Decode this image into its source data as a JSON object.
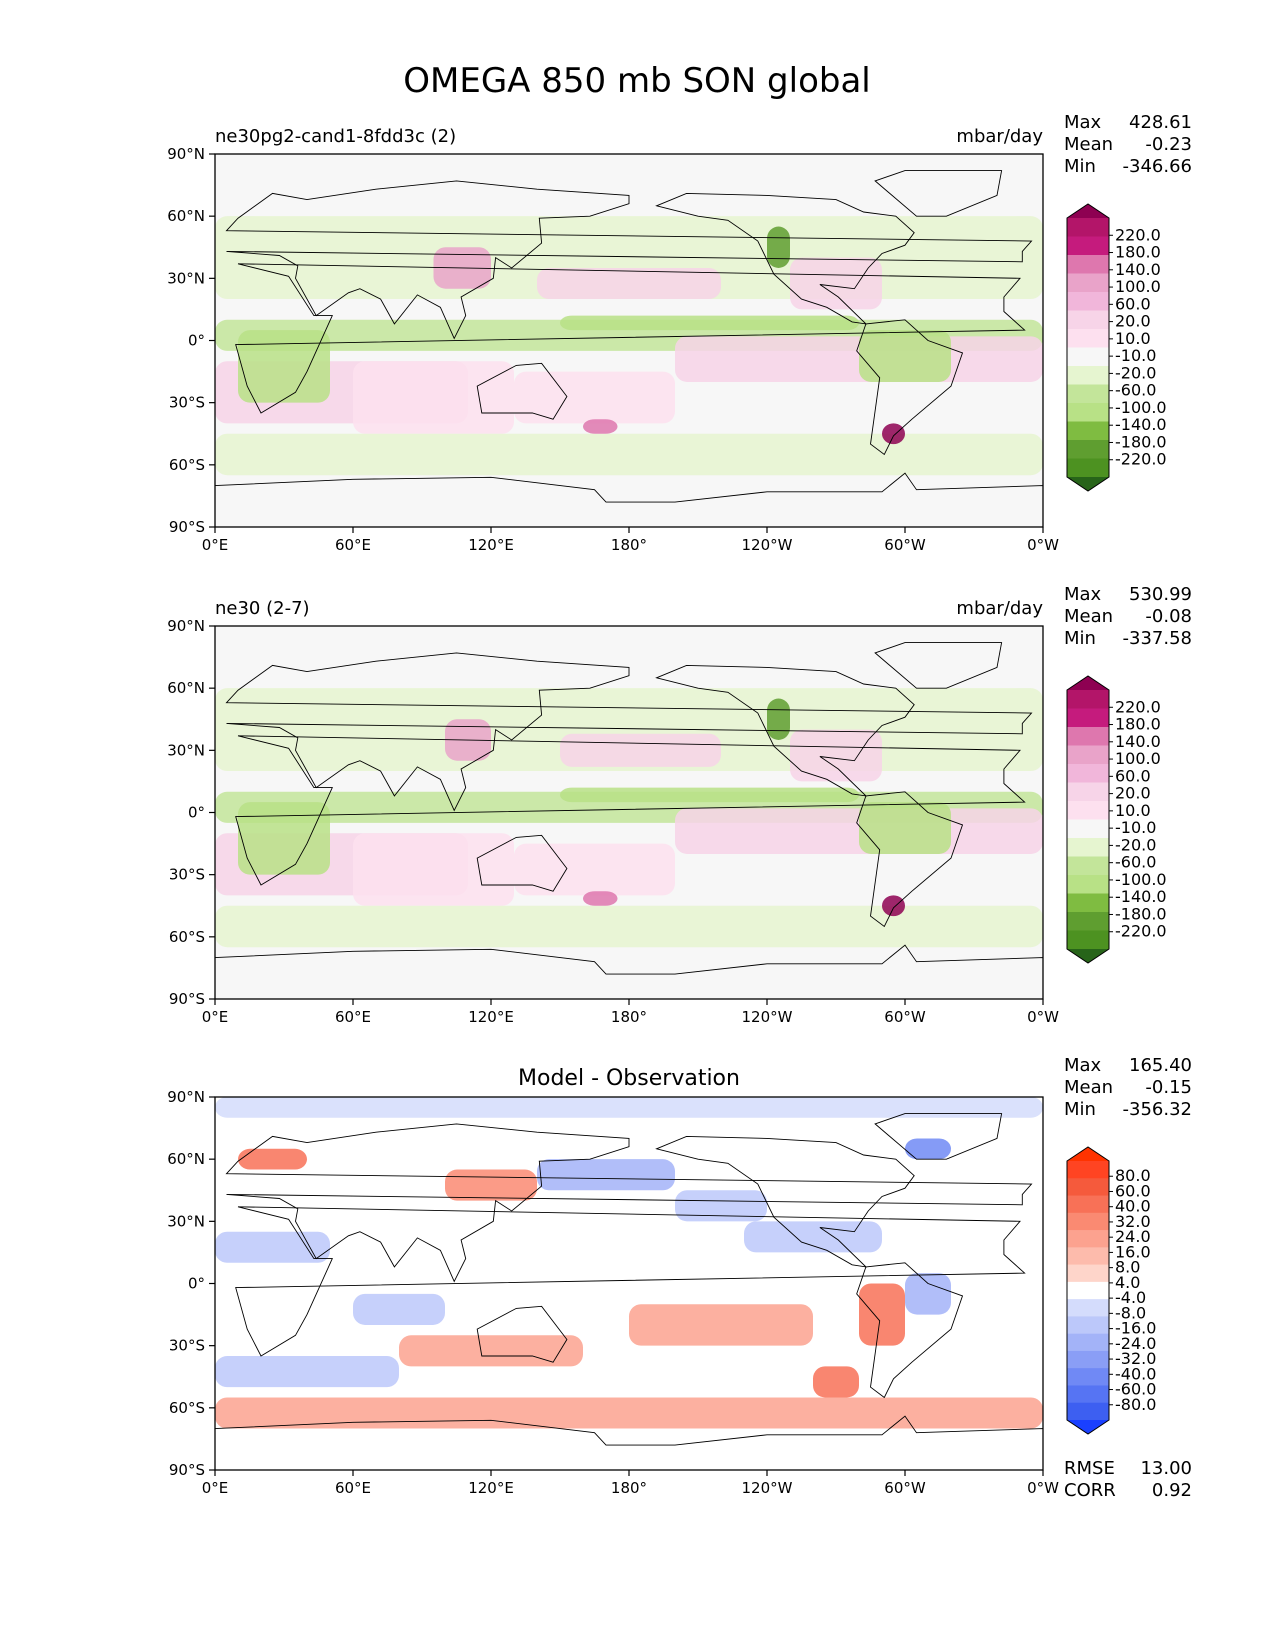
{
  "chart_data": {
    "type": "heatmap",
    "title": "OMEGA 850 mb SON global",
    "x_ticks": [
      "0°E",
      "60°E",
      "120°E",
      "180°",
      "120°W",
      "60°W",
      "0°W"
    ],
    "y_ticks": [
      "90°N",
      "60°N",
      "30°N",
      "0°",
      "30°S",
      "60°S",
      "90°S"
    ],
    "xlim": [
      0,
      360
    ],
    "ylim": [
      -90,
      90
    ],
    "panels": [
      {
        "id": "test",
        "left_title": "ne30pg2-cand1-8fdd3c (2)",
        "center_title": "",
        "units": "mbar/day",
        "stats": {
          "Max": "428.61",
          "Mean": "-0.23",
          "Min": "-346.66"
        },
        "colormap": "PiYG_r",
        "levels": [
          "220.0",
          "180.0",
          "140.0",
          "100.0",
          "60.0",
          "20.0",
          "10.0",
          "-10.0",
          "-20.0",
          "-60.0",
          "-100.0",
          "-140.0",
          "-180.0",
          "-220.0"
        ],
        "colors": [
          "#8e0152",
          "#b31569",
          "#c51b7d",
          "#de77ae",
          "#e9a3c9",
          "#f1b6da",
          "#f7d4e8",
          "#fde0ef",
          "#f7f7f7",
          "#e6f5d0",
          "#c3e59a",
          "#b8e186",
          "#7fbc41",
          "#5f9e30",
          "#4d9221",
          "#276419"
        ]
      },
      {
        "id": "reference",
        "left_title": "ne30 (2-7)",
        "center_title": "",
        "units": "mbar/day",
        "stats": {
          "Max": "530.99",
          "Mean": "-0.08",
          "Min": "-337.58"
        },
        "colormap": "PiYG_r",
        "levels": [
          "220.0",
          "180.0",
          "140.0",
          "100.0",
          "60.0",
          "20.0",
          "10.0",
          "-10.0",
          "-20.0",
          "-60.0",
          "-100.0",
          "-140.0",
          "-180.0",
          "-220.0"
        ],
        "colors": [
          "#8e0152",
          "#b31569",
          "#c51b7d",
          "#de77ae",
          "#e9a3c9",
          "#f1b6da",
          "#f7d4e8",
          "#fde0ef",
          "#f7f7f7",
          "#e6f5d0",
          "#c3e59a",
          "#b8e186",
          "#7fbc41",
          "#5f9e30",
          "#4d9221",
          "#276419"
        ]
      },
      {
        "id": "difference",
        "left_title": "",
        "center_title": "Model - Observation",
        "units": "",
        "stats": {
          "Max": "165.40",
          "Mean": "-0.15",
          "Min": "-356.32"
        },
        "extra_stats": {
          "RMSE": "13.00",
          "CORR": "0.92"
        },
        "colormap": "bwr",
        "levels": [
          "80.0",
          "60.0",
          "40.0",
          "32.0",
          "24.0",
          "16.0",
          "8.0",
          "4.0",
          "-4.0",
          "-8.0",
          "-16.0",
          "-24.0",
          "-32.0",
          "-40.0",
          "-60.0",
          "-80.0"
        ],
        "colors": [
          "#ff3300",
          "#ff4422",
          "#f55a3c",
          "#f87157",
          "#fa8a72",
          "#fca28f",
          "#fdbbac",
          "#fed5ca",
          "#ffffff",
          "#d4dcfc",
          "#bcc8fa",
          "#a3b3f8",
          "#8a9ef6",
          "#7089f5",
          "#5674f3",
          "#3d5ff1",
          "#1a40ff"
        ]
      }
    ]
  }
}
